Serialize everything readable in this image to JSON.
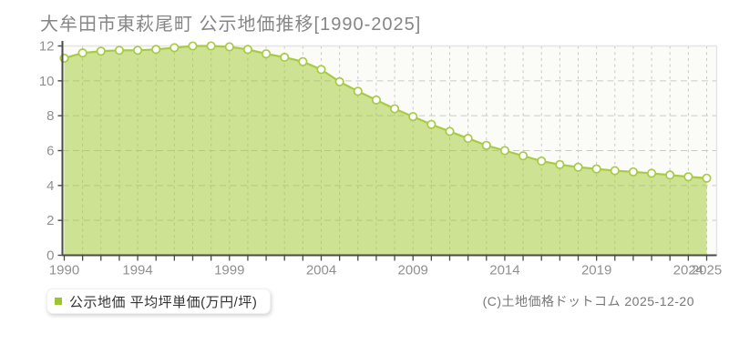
{
  "title": "大牟田市東萩尾町 公示地価推移[1990-2025]",
  "legend": {
    "label": "公示地価 平均坪単価(万円/坪)",
    "marker_color": "#9ec42e"
  },
  "copyright": "(C)土地価格ドットコム 2025-12-20",
  "chart_data": {
    "type": "area",
    "title": "大牟田市東萩尾町 公示地価推移[1990-2025]",
    "series_name": "公示地価 平均坪単価(万円/坪)",
    "x": [
      1990,
      1991,
      1992,
      1993,
      1994,
      1995,
      1996,
      1997,
      1998,
      1999,
      2000,
      2001,
      2002,
      2003,
      2004,
      2005,
      2006,
      2007,
      2008,
      2009,
      2010,
      2011,
      2012,
      2013,
      2014,
      2015,
      2016,
      2017,
      2018,
      2019,
      2020,
      2021,
      2022,
      2023,
      2024,
      2025
    ],
    "values": [
      11.3,
      11.6,
      11.7,
      11.75,
      11.75,
      11.8,
      11.9,
      12.0,
      12.0,
      11.95,
      11.8,
      11.55,
      11.35,
      11.1,
      10.65,
      9.95,
      9.4,
      8.9,
      8.4,
      7.95,
      7.5,
      7.1,
      6.7,
      6.3,
      6.0,
      5.7,
      5.4,
      5.2,
      5.05,
      4.95,
      4.85,
      4.78,
      4.7,
      4.6,
      4.5,
      4.42
    ],
    "ylim": [
      0,
      12
    ],
    "y_ticks": [
      0,
      2,
      4,
      6,
      8,
      10,
      12
    ],
    "x_tick_years": [
      1990,
      1994,
      1999,
      2004,
      2009,
      2014,
      2019,
      2024,
      2025
    ],
    "grid": true,
    "legend_position": "bottom-left",
    "colors": {
      "line": "#a8cb44",
      "fill": "#9fc92b",
      "fill_opacity": 0.5,
      "marker_fill": "#ffffff",
      "grid": "#c9c9c9",
      "border": "#e4e4e4",
      "axis": "#4a4a4a",
      "tick_text": "#909090",
      "plot_bg": "#fbfbf8"
    }
  }
}
